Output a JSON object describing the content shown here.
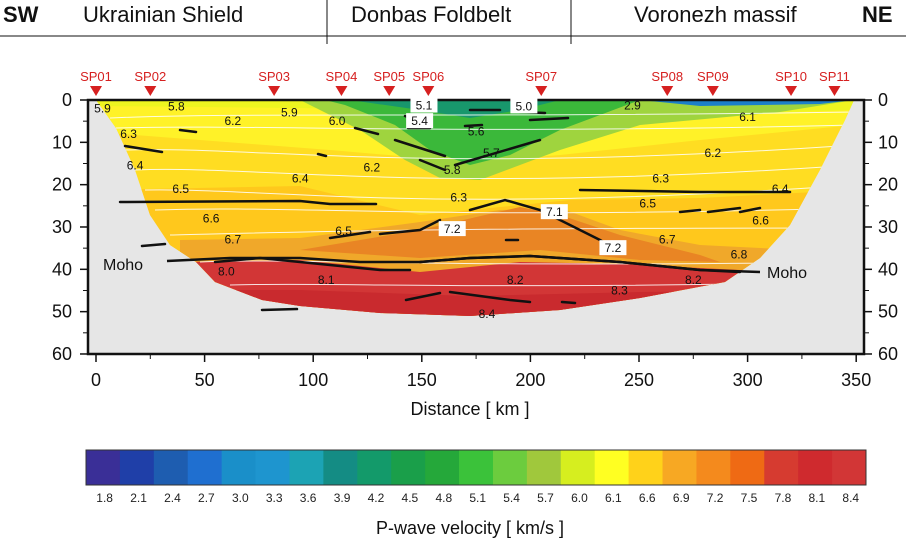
{
  "header": {
    "left_dir": "SW",
    "right_dir": "NE",
    "regions": [
      "Ukrainian Shield",
      "Donbas Foldbelt",
      "Voronezh massif"
    ]
  },
  "shot_points": [
    {
      "label": "SP01",
      "km": 0
    },
    {
      "label": "SP02",
      "km": 25
    },
    {
      "label": "SP03",
      "km": 82
    },
    {
      "label": "SP04",
      "km": 113
    },
    {
      "label": "SP05",
      "km": 135
    },
    {
      "label": "SP06",
      "km": 153
    },
    {
      "label": "SP07",
      "km": 205
    },
    {
      "label": "SP08",
      "km": 263
    },
    {
      "label": "SP09",
      "km": 284
    },
    {
      "label": "SP10",
      "km": 320
    },
    {
      "label": "SP11",
      "km": 340
    }
  ],
  "axes": {
    "x_label": "Distance  [ km ]",
    "x_ticks": [
      "0",
      "50",
      "100",
      "150",
      "200",
      "250",
      "300",
      "350"
    ],
    "y_ticks": [
      "0",
      "10",
      "20",
      "30",
      "40",
      "50",
      "60"
    ],
    "x_range": [
      -3,
      355
    ],
    "y_range": [
      0,
      60
    ]
  },
  "velocity_labels": [
    {
      "text": "5.9",
      "km": 3,
      "depth": 2
    },
    {
      "text": "5.8",
      "km": 37,
      "depth": 1.5
    },
    {
      "text": "5.9",
      "km": 89,
      "depth": 3
    },
    {
      "text": "5.1",
      "km": 151,
      "depth": 1.3,
      "boxed": true
    },
    {
      "text": "5.0",
      "km": 197,
      "depth": 1.5,
      "boxed": true
    },
    {
      "text": "2.9",
      "km": 247,
      "depth": 1.3
    },
    {
      "text": "6.2",
      "km": 63,
      "depth": 5
    },
    {
      "text": "6.0",
      "km": 111,
      "depth": 5
    },
    {
      "text": "5.4",
      "km": 149,
      "depth": 5,
      "boxed": true
    },
    {
      "text": "6.1",
      "km": 300,
      "depth": 4
    },
    {
      "text": "6.3",
      "km": 15,
      "depth": 8
    },
    {
      "text": "5.6",
      "km": 175,
      "depth": 7.5
    },
    {
      "text": "5.7",
      "km": 182,
      "depth": 12.5
    },
    {
      "text": "6.2",
      "km": 284,
      "depth": 12.5
    },
    {
      "text": "6.4",
      "km": 18,
      "depth": 15.5
    },
    {
      "text": "6.2",
      "km": 127,
      "depth": 16
    },
    {
      "text": "5.8",
      "km": 164,
      "depth": 16.5
    },
    {
      "text": "6.4",
      "km": 94,
      "depth": 18.5
    },
    {
      "text": "6.3",
      "km": 260,
      "depth": 18.5
    },
    {
      "text": "6.5",
      "km": 39,
      "depth": 21
    },
    {
      "text": "6.4",
      "km": 315,
      "depth": 21
    },
    {
      "text": "6.3",
      "km": 167,
      "depth": 23
    },
    {
      "text": "6.5",
      "km": 254,
      "depth": 24.5
    },
    {
      "text": "7.1",
      "km": 211,
      "depth": 26.5,
      "boxed": true
    },
    {
      "text": "6.6",
      "km": 53,
      "depth": 28
    },
    {
      "text": "6.6",
      "km": 306,
      "depth": 28.5
    },
    {
      "text": "7.2",
      "km": 164,
      "depth": 30.5,
      "boxed": true
    },
    {
      "text": "6.5",
      "km": 114,
      "depth": 31
    },
    {
      "text": "6.7",
      "km": 63,
      "depth": 33
    },
    {
      "text": "6.7",
      "km": 263,
      "depth": 33
    },
    {
      "text": "7.2",
      "km": 238,
      "depth": 35,
      "boxed": true
    },
    {
      "text": "6.8",
      "km": 296,
      "depth": 36.5
    },
    {
      "text": "8.0",
      "km": 60,
      "depth": 40.5
    },
    {
      "text": "8.1",
      "km": 106,
      "depth": 42.5
    },
    {
      "text": "8.2",
      "km": 193,
      "depth": 42.5
    },
    {
      "text": "8.2",
      "km": 275,
      "depth": 42.5
    },
    {
      "text": "8.3",
      "km": 241,
      "depth": 45
    },
    {
      "text": "8.4",
      "km": 180,
      "depth": 50.5
    }
  ],
  "moho_labels": [
    {
      "text": "Moho",
      "side": "left"
    },
    {
      "text": "Moho",
      "side": "right"
    }
  ],
  "colorbar": {
    "title": "P-wave velocity  [ km/s ]",
    "ticks": [
      "1.8",
      "2.1",
      "2.4",
      "2.7",
      "3.0",
      "3.3",
      "3.6",
      "3.9",
      "4.2",
      "4.5",
      "4.8",
      "5.1",
      "5.4",
      "5.7",
      "6.0",
      "6.1",
      "6.6",
      "6.9",
      "7.2",
      "7.5",
      "7.8",
      "8.1",
      "8.4"
    ],
    "colors": [
      "#3a2f97",
      "#1f3fa8",
      "#1e5db0",
      "#1f6fd0",
      "#1a8fc9",
      "#1e95cf",
      "#1ca3b4",
      "#148c84",
      "#139a6a",
      "#1a9f4a",
      "#25a83a",
      "#3bc23a",
      "#6ccc3e",
      "#a0c83c",
      "#d6ee1f",
      "#ffff22",
      "#ffd21a",
      "#f7a823",
      "#f48a1d",
      "#ef6a14",
      "#d63b30",
      "#cf2a2e",
      "#d23636"
    ]
  }
}
